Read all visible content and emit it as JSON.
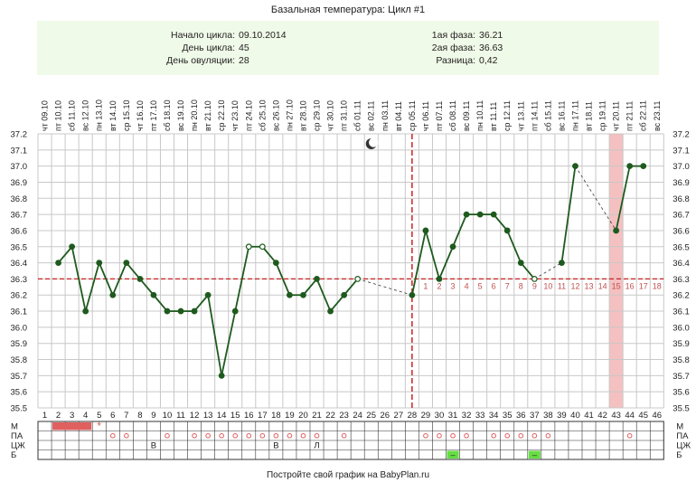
{
  "title": "Базальная температура: Цикл #1",
  "info": {
    "left": [
      {
        "label": "Начало цикла:",
        "value": "09.10.2014"
      },
      {
        "label": "День цикла:",
        "value": "45"
      },
      {
        "label": "День овуляции:",
        "value": "28"
      }
    ],
    "right": [
      {
        "label": "1ая фаза:",
        "value": "36.21"
      },
      {
        "label": "2ая фаза:",
        "value": "36.63"
      },
      {
        "label": "Разница:",
        "value": "0,42"
      }
    ]
  },
  "footer": "Постройте свой график на BabyPlan.ru",
  "colors": {
    "background": "#ffffff",
    "header_panel": "#f0fae8",
    "grid": "#c8c8c8",
    "line": "#1e5a1e",
    "point": "#1e5a1e",
    "coverline": "#cc2222",
    "ovulation_line": "#cc2222",
    "highlight": "#f5c0c0",
    "phase2_numbers": "#c05050",
    "menses_bar": "#e06060",
    "green_marker": "#66dd44",
    "circle_marker": "#e06060"
  },
  "chart_data": {
    "type": "line",
    "title": "Базальная температура: Цикл #1",
    "ylim": [
      35.5,
      37.2
    ],
    "yticks": [
      "37.2",
      "37.1",
      "37.0",
      "36.9",
      "36.8",
      "36.7",
      "36.6",
      "36.5",
      "36.4",
      "36.3",
      "36.2",
      "36.1",
      "36.0",
      "35.9",
      "35.8",
      "35.7",
      "35.6",
      "35.5"
    ],
    "days": [
      "1",
      "2",
      "3",
      "4",
      "5",
      "6",
      "7",
      "8",
      "9",
      "10",
      "11",
      "12",
      "13",
      "14",
      "15",
      "16",
      "17",
      "18",
      "19",
      "20",
      "21",
      "22",
      "23",
      "24",
      "25",
      "26",
      "27",
      "28",
      "29",
      "30",
      "31",
      "32",
      "33",
      "34",
      "35",
      "36",
      "37",
      "38",
      "39",
      "40",
      "41",
      "42",
      "43",
      "44",
      "45",
      "46"
    ],
    "dates": [
      "чт 09.10",
      "пт 10.10",
      "сб 11.10",
      "вс 12.10",
      "пн 13.10",
      "вт 14.10",
      "ср 15.10",
      "чт 16.10",
      "пт 17.10",
      "сб 18.10",
      "вс 19.10",
      "пн 20.10",
      "вт 21.10",
      "ср 22.10",
      "чт 23.10",
      "пт 24.10",
      "сб 25.10",
      "вс 26.10",
      "пн 27.10",
      "вт 28.10",
      "ср 29.10",
      "чт 30.10",
      "пт 31.10",
      "сб 01.11",
      "вс 02.11",
      "пн 03.11",
      "вт 04.11",
      "ср 05.11",
      "чт 06.11",
      "пт 07.11",
      "сб 08.11",
      "вс 09.11",
      "пн 10.11",
      "вт 11.11",
      "ср 12.11",
      "чт 13.11",
      "пт 14.11",
      "сб 15.11",
      "вс 16.11",
      "пн 17.11",
      "вт 18.11",
      "ср 19.11",
      "чт 20.11",
      "пт 21.11",
      "сб 22.11",
      "вс 23.11"
    ],
    "temperature": [
      null,
      36.4,
      36.5,
      36.1,
      36.4,
      36.2,
      36.4,
      36.3,
      36.2,
      36.1,
      36.1,
      36.1,
      36.2,
      35.7,
      36.1,
      36.5,
      36.5,
      36.4,
      36.2,
      36.2,
      36.3,
      36.1,
      36.2,
      36.3,
      null,
      null,
      null,
      36.2,
      36.6,
      36.3,
      36.5,
      36.7,
      36.7,
      36.7,
      36.6,
      36.4,
      36.3,
      null,
      36.4,
      37.0,
      null,
      null,
      36.6,
      37.0,
      37.0,
      null
    ],
    "open_points": [
      16,
      17,
      24,
      37
    ],
    "coverline": 36.3,
    "ovulation_day": 28,
    "highlight_day": 43,
    "phase2_labels": [
      "1",
      "2",
      "3",
      "4",
      "5",
      "6",
      "7",
      "8",
      "9",
      "10",
      "11",
      "12",
      "13",
      "14",
      "15",
      "16",
      "17",
      "18"
    ],
    "phase2_start_day": 29,
    "moon_day": 25,
    "rows": {
      "labels": [
        "М",
        "ПА",
        "ЦЖ",
        "Б"
      ],
      "menses_days": [
        2,
        3,
        4
      ],
      "star_day": 5,
      "circle_days": [
        6,
        7,
        10,
        12,
        13,
        14,
        15,
        16,
        17,
        18,
        19,
        20,
        21,
        23,
        29,
        30,
        31,
        32,
        34,
        35,
        36,
        37,
        38,
        44
      ],
      "cervix_marks": [
        {
          "day": 9,
          "mark": "В"
        },
        {
          "day": 18,
          "mark": "В"
        },
        {
          "day": 21,
          "mark": "Л"
        }
      ],
      "green_days": [
        31,
        37
      ],
      "green_mark": "–"
    }
  }
}
